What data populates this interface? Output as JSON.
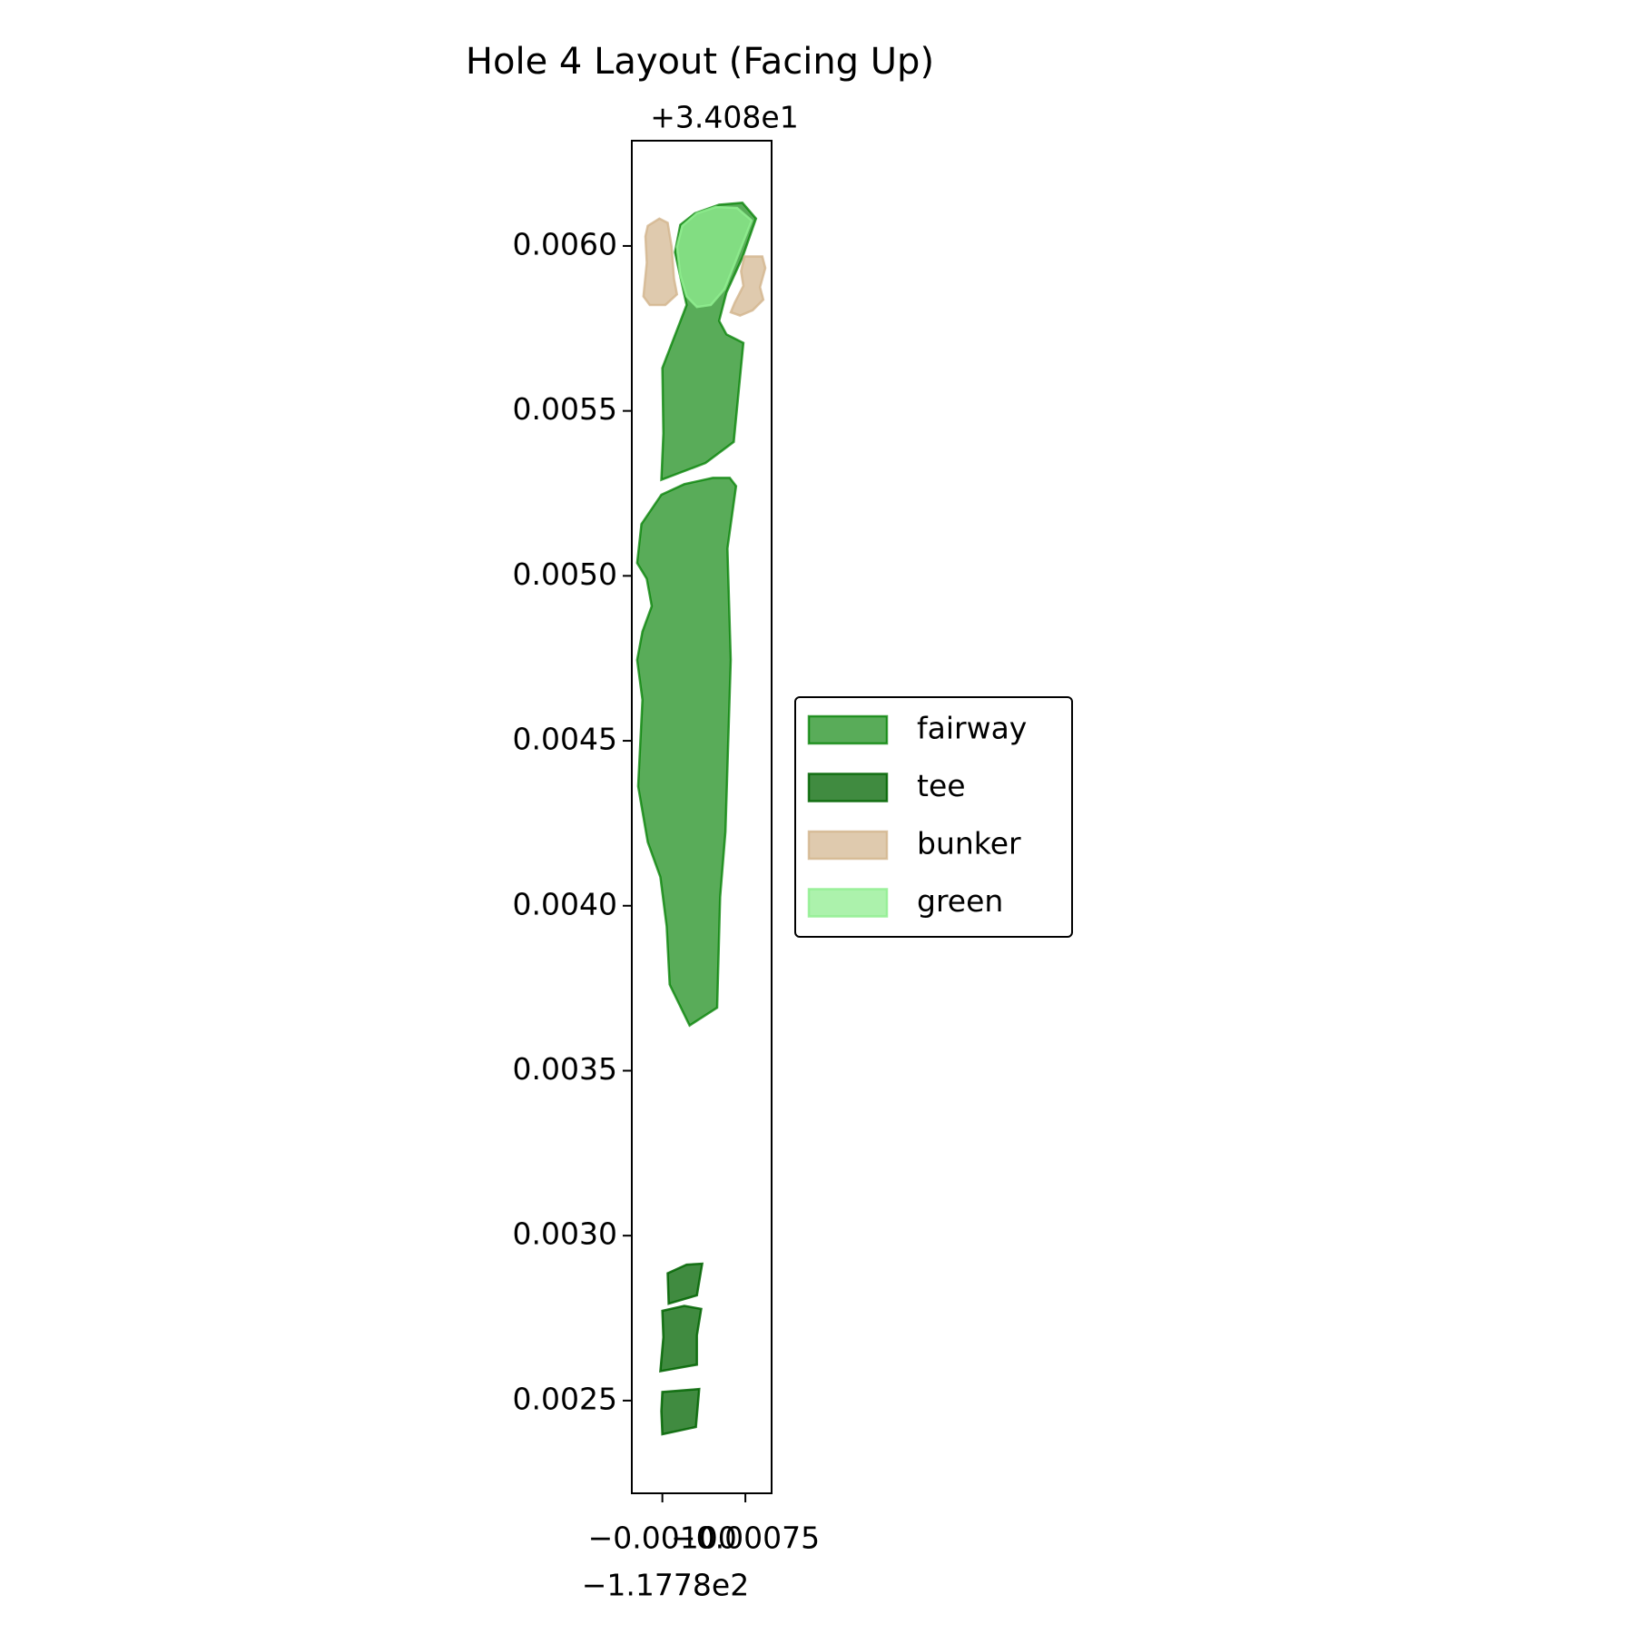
{
  "chart_data": {
    "type": "polygon-map",
    "title": "Hole 4 Layout (Facing Up)",
    "x_offset_label": "−1.1778e2",
    "y_offset_label": "+3.408e1",
    "xlim": [
      -0.001092,
      -0.000671
    ],
    "ylim": [
      0.002219,
      0.006319
    ],
    "xticks": [
      {
        "value": -0.001,
        "label": "−0.00100"
      },
      {
        "value": -0.00075,
        "label": "−0.00075"
      }
    ],
    "yticks": [
      {
        "value": 0.0025,
        "label": "0.0025"
      },
      {
        "value": 0.003,
        "label": "0.0030"
      },
      {
        "value": 0.0035,
        "label": "0.0035"
      },
      {
        "value": 0.004,
        "label": "0.0040"
      },
      {
        "value": 0.0045,
        "label": "0.0045"
      },
      {
        "value": 0.005,
        "label": "0.0050"
      },
      {
        "value": 0.0055,
        "label": "0.0055"
      },
      {
        "value": 0.006,
        "label": "0.0060"
      }
    ],
    "series": [
      {
        "name": "fairway",
        "color": "#008000",
        "opacity": 0.65,
        "polygons": [
          {
            "x": [
              -0.000962,
              -0.000946,
              -0.000902,
              -0.000829,
              -0.000759,
              -0.000718,
              -0.000759,
              -0.000807,
              -0.000829,
              -0.000807,
              -0.000756,
              -0.000785,
              -0.00087,
              -0.001003,
              -0.000997,
              -0.001,
              -0.000927
            ],
            "y": [
              0.005981,
              0.006064,
              0.006099,
              0.006125,
              0.006131,
              0.006083,
              0.005965,
              0.005859,
              0.005773,
              0.005732,
              0.005706,
              0.005406,
              0.005342,
              0.005291,
              0.005432,
              0.00563,
              0.005821
            ]
          },
          {
            "x": [
              -0.000918,
              -0.000835,
              -0.000826,
              -0.00081,
              -0.000794,
              -0.000804,
              -0.000778,
              -0.000797,
              -0.000848,
              -0.000934,
              -0.001003,
              -0.001063,
              -0.001076,
              -0.001047,
              -0.001032,
              -0.00106,
              -0.001076,
              -0.00106,
              -0.001073,
              -0.001044,
              -0.001006,
              -0.000987,
              -0.000978
            ],
            "y": [
              0.003637,
              0.003691,
              0.004026,
              0.004224,
              0.004745,
              0.005083,
              0.005272,
              0.005297,
              0.005297,
              0.005278,
              0.005246,
              0.005157,
              0.005039,
              0.004991,
              0.004908,
              0.004831,
              0.004745,
              0.004624,
              0.004362,
              0.004193,
              0.004087,
              0.003937,
              0.003761
            ]
          }
        ]
      },
      {
        "name": "tee",
        "color": "#006400",
        "opacity": 0.75,
        "polygons": [
          {
            "x": [
              -0.000984,
              -0.000927,
              -0.00088,
              -0.000896,
              -0.000981
            ],
            "y": [
              0.002886,
              0.002912,
              0.002915,
              0.002819,
              0.002794
            ]
          },
          {
            "x": [
              -0.001,
              -0.000934,
              -0.000883,
              -0.000896,
              -0.000896,
              -0.001006,
              -0.000997
            ],
            "y": [
              0.002772,
              0.002787,
              0.002778,
              0.002698,
              0.002609,
              0.002589,
              0.002692
            ]
          },
          {
            "x": [
              -0.001,
              -0.000889,
              -0.000899,
              -0.001,
              -0.001003
            ],
            "y": [
              0.002526,
              0.002535,
              0.00242,
              0.002398,
              0.002468
            ]
          }
        ]
      },
      {
        "name": "bunker",
        "color": "#d2b48c",
        "opacity": 0.7,
        "polygons": [
          {
            "x": [
              -0.001044,
              -0.001009,
              -0.000984,
              -0.000972,
              -0.000965,
              -0.000956,
              -0.000991,
              -0.001038,
              -0.001057,
              -0.001047,
              -0.001051
            ],
            "y": [
              0.006061,
              0.006083,
              0.00607,
              0.005997,
              0.005901,
              0.005853,
              0.005821,
              0.005821,
              0.005847,
              0.005949,
              0.006029
            ]
          },
          {
            "x": [
              -0.000753,
              -0.000699,
              -0.00069,
              -0.000706,
              -0.000696,
              -0.000728,
              -0.000766,
              -0.000794,
              -0.000782,
              -0.000756,
              -0.000763
            ],
            "y": [
              0.005968,
              0.005968,
              0.005933,
              0.005875,
              0.005837,
              0.005805,
              0.005789,
              0.005799,
              0.005828,
              0.005879,
              0.005923
            ]
          }
        ]
      },
      {
        "name": "green",
        "color": "#90ee90",
        "opacity": 0.75,
        "polygons": [
          {
            "x": [
              -0.000956,
              -0.00094,
              -0.000896,
              -0.000839,
              -0.000775,
              -0.000731,
              -0.000775,
              -0.000813,
              -0.000854,
              -0.000896,
              -0.000927,
              -0.000946
            ],
            "y": [
              0.005997,
              0.006061,
              0.006099,
              0.006118,
              0.006115,
              0.006077,
              0.005965,
              0.005869,
              0.005821,
              0.005815,
              0.005847,
              0.005911
            ]
          }
        ]
      }
    ]
  }
}
